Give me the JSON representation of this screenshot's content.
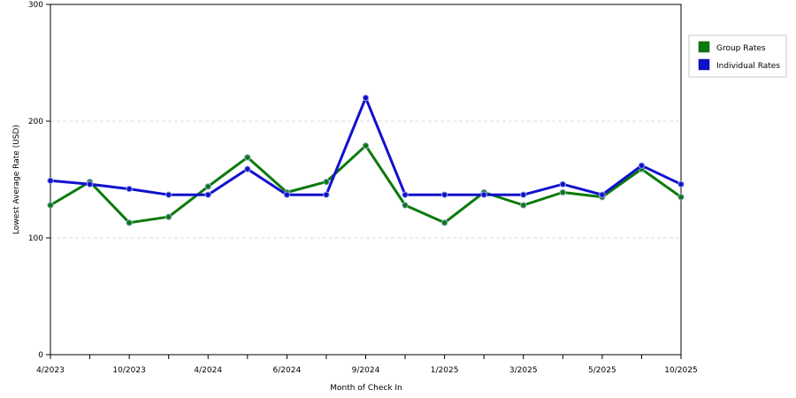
{
  "chart_data": {
    "type": "line",
    "x": [
      "4/2023",
      "",
      "10/2023",
      "",
      "4/2024",
      "",
      "6/2024",
      "",
      "9/2024",
      "",
      "1/2025",
      "",
      "3/2025",
      "",
      "5/2025",
      "",
      "10/2025"
    ],
    "x_tick_labels": [
      "4/2023",
      "10/2023",
      "4/2024",
      "6/2024",
      "9/2024",
      "1/2025",
      "3/2025",
      "5/2025",
      "10/2025"
    ],
    "series": [
      {
        "name": "Group Rates",
        "color": "#0b7a0b",
        "values": [
          128,
          148,
          113,
          118,
          144,
          169,
          139,
          148,
          179,
          128,
          113,
          139,
          128,
          139,
          135,
          159,
          135
        ]
      },
      {
        "name": "Individual Rates",
        "color": "#1111cc",
        "values": [
          149,
          146,
          142,
          137,
          137,
          159,
          137,
          137,
          220,
          137,
          137,
          137,
          137,
          146,
          137,
          162,
          146
        ]
      }
    ],
    "xlabel": "Month of Check In",
    "ylabel": "Lowest Average Rate (USD)",
    "ylim": [
      0,
      300
    ],
    "y_ticks": [
      "0",
      "100",
      "200",
      "300"
    ],
    "grid": "horizontal dashed",
    "legend_placement": "right"
  }
}
